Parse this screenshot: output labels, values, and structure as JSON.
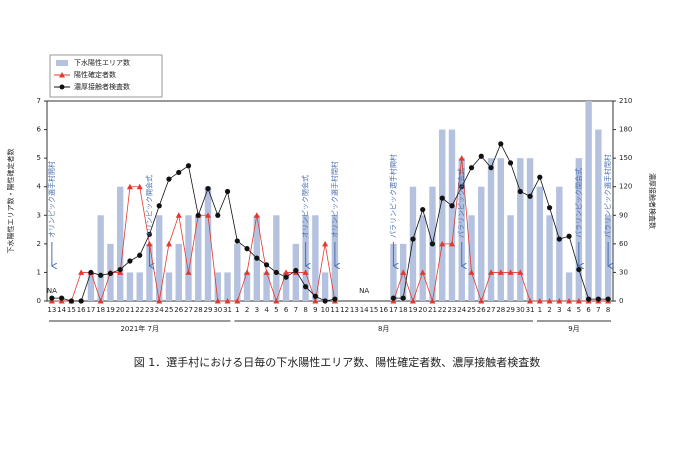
{
  "chart_data": {
    "type": "bar_line",
    "categories": [
      "13",
      "14",
      "15",
      "16",
      "17",
      "18",
      "19",
      "20",
      "21",
      "22",
      "23",
      "24",
      "25",
      "26",
      "27",
      "28",
      "29",
      "30",
      "31",
      "1",
      "2",
      "3",
      "4",
      "5",
      "6",
      "7",
      "8",
      "9",
      "10",
      "11",
      "12",
      "13",
      "14",
      "15",
      "16",
      "17",
      "18",
      "19",
      "20",
      "21",
      "22",
      "23",
      "24",
      "25",
      "26",
      "27",
      "28",
      "29",
      "30",
      "31",
      "1",
      "2",
      "3",
      "4",
      "5",
      "6",
      "7",
      "8"
    ],
    "months": [
      "2021年 7月",
      "8月",
      "9月"
    ],
    "ylabel": "下水陽性エリア数・陽性確定者数",
    "y2label": "濃厚接触者検査数",
    "ylim": [
      0,
      7
    ],
    "yticks": [
      0,
      1,
      2,
      3,
      4,
      5,
      6,
      7
    ],
    "y2lim": [
      0,
      210
    ],
    "y2ticks": [
      0,
      30,
      60,
      90,
      120,
      150,
      180,
      210
    ],
    "series": [
      {
        "name": "下水陽性エリア数",
        "color": "#b4c2e0",
        "kind": "bar",
        "values": [
          null,
          0,
          0,
          0,
          1,
          3,
          2,
          4,
          1,
          1,
          2,
          3,
          1,
          2,
          3,
          3,
          4,
          1,
          1,
          2,
          1,
          3,
          1,
          3,
          1,
          2,
          3,
          3,
          1,
          3,
          null,
          null,
          null,
          null,
          null,
          2,
          2,
          4,
          3,
          4,
          6,
          6,
          5,
          3,
          4,
          5,
          5,
          3,
          5,
          5,
          4,
          3,
          4,
          1,
          5,
          7,
          6,
          3
        ]
      },
      {
        "name": "陽性確定者数",
        "color": "#e03a2f",
        "kind": "line-triangle",
        "values": [
          0,
          0,
          0,
          1,
          1,
          0,
          1,
          1,
          4,
          4,
          2,
          0,
          2,
          3,
          1,
          3,
          3,
          0,
          0,
          0,
          1,
          3,
          1,
          0,
          1,
          1,
          1,
          0,
          2,
          0,
          null,
          null,
          null,
          null,
          null,
          0,
          1,
          0,
          1,
          0,
          2,
          2,
          5,
          1,
          0,
          1,
          1,
          1,
          1,
          0,
          0,
          0,
          0,
          0,
          0,
          0,
          0,
          0
        ]
      },
      {
        "name": "濃厚接触者検査数",
        "color": "#111111",
        "kind": "line-circle",
        "axis": "y2",
        "values": [
          3,
          3,
          0,
          0,
          30,
          27,
          29,
          33,
          42,
          48,
          70,
          100,
          128,
          135,
          142,
          90,
          118,
          90,
          115,
          63,
          55,
          45,
          38,
          30,
          25,
          32,
          15,
          5,
          0,
          2,
          null,
          null,
          null,
          null,
          null,
          3,
          3,
          65,
          96,
          60,
          108,
          100,
          120,
          140,
          152,
          140,
          165,
          145,
          115,
          110,
          130,
          98,
          65,
          68,
          33,
          2,
          2,
          2
        ]
      }
    ],
    "annotations": [
      {
        "text": "NA",
        "category": 0
      },
      {
        "text": "NA",
        "category": 32
      },
      {
        "text": "オリンピック選手村開村",
        "category": 0,
        "arrow": true
      },
      {
        "text": "オリンピック開会式",
        "category": 10,
        "arrow": true
      },
      {
        "text": "オリンピック閉会式",
        "category": 26,
        "arrow": true
      },
      {
        "text": "オリンピック選手村閉村",
        "category": 29,
        "arrow": true
      },
      {
        "text": "パラリンピック選手村開村",
        "category": 35,
        "arrow": true
      },
      {
        "text": "パラリンピック開会式",
        "category": 42,
        "arrow": true
      },
      {
        "text": "パラリンピック閉会式",
        "category": 54,
        "arrow": true
      },
      {
        "text": "パラリンピック選手村閉村",
        "category": 57,
        "arrow": true
      }
    ],
    "caption": "図 1．選手村における日毎の下水陽性エリア数、陽性確定者数、濃厚接触者検査数"
  }
}
